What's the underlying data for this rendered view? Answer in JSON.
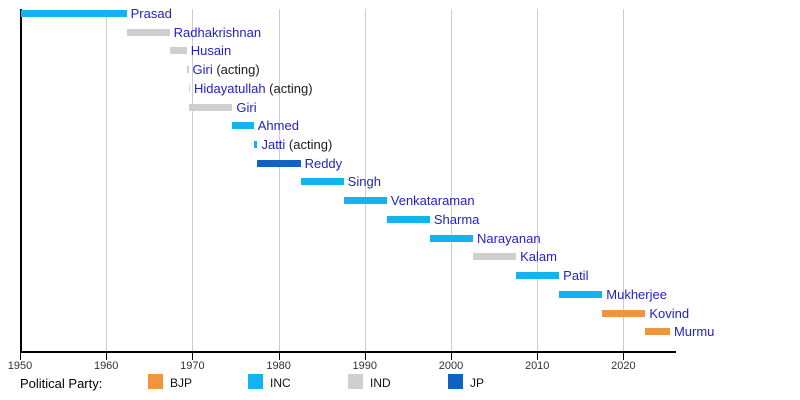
{
  "chart_data": {
    "type": "bar",
    "variant": "horizontal-timeline-gantt",
    "title": "",
    "xlabel": "",
    "ylabel": "",
    "x_range": [
      1950,
      2025.8
    ],
    "grid": "vertical",
    "x_ticks": [
      {
        "year": 1950,
        "label": "1950"
      },
      {
        "year": 1960,
        "label": "1960"
      },
      {
        "year": 1970,
        "label": "1970"
      },
      {
        "year": 1980,
        "label": "1980"
      },
      {
        "year": 1990,
        "label": "1990"
      },
      {
        "year": 2000,
        "label": "2000"
      },
      {
        "year": 2010,
        "label": "2010"
      },
      {
        "year": 2020,
        "label": "2020"
      }
    ],
    "bars": [
      {
        "label": "Prasad",
        "suffix": "",
        "party": "INC",
        "start": 1950.07,
        "end": 1962.37
      },
      {
        "label": "Radhakrishnan",
        "suffix": "",
        "party": "IND",
        "start": 1962.37,
        "end": 1967.36
      },
      {
        "label": "Husain",
        "suffix": "",
        "party": "IND",
        "start": 1967.36,
        "end": 1969.34
      },
      {
        "label": "Giri",
        "suffix": " (acting)",
        "party": "IND",
        "start": 1969.34,
        "end": 1969.55
      },
      {
        "label": "Hidayatullah",
        "suffix": " (acting)",
        "party": "IND",
        "start": 1969.55,
        "end": 1969.65
      },
      {
        "label": "Giri",
        "suffix": "",
        "party": "IND",
        "start": 1969.65,
        "end": 1974.64
      },
      {
        "label": "Ahmed",
        "suffix": "",
        "party": "INC",
        "start": 1974.64,
        "end": 1977.12
      },
      {
        "label": "Jatti",
        "suffix": " (acting)",
        "party": "INC",
        "start": 1977.12,
        "end": 1977.55
      },
      {
        "label": "Reddy",
        "suffix": "",
        "party": "JP",
        "start": 1977.55,
        "end": 1982.55
      },
      {
        "label": "Singh",
        "suffix": "",
        "party": "INC",
        "start": 1982.55,
        "end": 1987.55
      },
      {
        "label": "Venkataraman",
        "suffix": "",
        "party": "INC",
        "start": 1987.55,
        "end": 1992.55
      },
      {
        "label": "Sharma",
        "suffix": "",
        "party": "INC",
        "start": 1992.55,
        "end": 1997.55
      },
      {
        "label": "Narayanan",
        "suffix": "",
        "party": "INC",
        "start": 1997.55,
        "end": 2002.55
      },
      {
        "label": "Kalam",
        "suffix": "",
        "party": "IND",
        "start": 2002.55,
        "end": 2007.55
      },
      {
        "label": "Patil",
        "suffix": "",
        "party": "INC",
        "start": 2007.55,
        "end": 2012.55
      },
      {
        "label": "Mukherjee",
        "suffix": "",
        "party": "INC",
        "start": 2012.55,
        "end": 2017.55
      },
      {
        "label": "Kovind",
        "suffix": "",
        "party": "BJP",
        "start": 2017.55,
        "end": 2022.55
      },
      {
        "label": "Murmu",
        "suffix": "",
        "party": "BJP",
        "start": 2022.55,
        "end": 2025.4
      }
    ],
    "party_colors": {
      "BJP": "#F0953E",
      "INC": "#12B3F0",
      "IND": "#CFCFCF",
      "JP": "#1063C5"
    }
  },
  "legend": {
    "title": "Political Party:",
    "items": [
      {
        "label": "BJP",
        "party": "BJP"
      },
      {
        "label": "INC",
        "party": "INC"
      },
      {
        "label": "IND",
        "party": "IND"
      },
      {
        "label": "JP",
        "party": "JP"
      }
    ]
  },
  "colors": {
    "name_text": "#2222c8",
    "suffix_text": "#1a1a1a",
    "gridline": "#cccccc",
    "axis": "#000000",
    "tick_text": "#333333",
    "background": "#ffffff"
  }
}
